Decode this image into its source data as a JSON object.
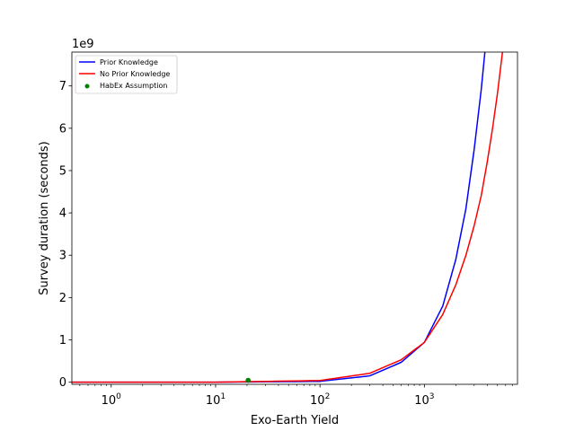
{
  "chart_data": {
    "type": "line",
    "xlabel": "Exo-Earth Yield",
    "ylabel": "Survey duration (seconds)",
    "y_offset_text": "1e9",
    "x_scale": "log",
    "xlim": [
      0.42,
      7800
    ],
    "ylim": [
      -0.05,
      7.8
    ],
    "y_unit_multiplier": 1000000000,
    "x_ticks": [
      {
        "value": 1,
        "base": "10",
        "exp": "0"
      },
      {
        "value": 10,
        "base": "10",
        "exp": "1"
      },
      {
        "value": 100,
        "base": "10",
        "exp": "2"
      },
      {
        "value": 1000,
        "base": "10",
        "exp": "3"
      }
    ],
    "y_ticks": [
      {
        "value": 0,
        "label": "0"
      },
      {
        "value": 1,
        "label": "1"
      },
      {
        "value": 2,
        "label": "2"
      },
      {
        "value": 3,
        "label": "3"
      },
      {
        "value": 4,
        "label": "4"
      },
      {
        "value": 5,
        "label": "5"
      },
      {
        "value": 6,
        "label": "6"
      },
      {
        "value": 7,
        "label": "7"
      }
    ],
    "grid": false,
    "legend_position": "top-left",
    "series": [
      {
        "name": "Prior Knowledge",
        "color": "#0000ff",
        "kind": "line",
        "x": [
          0.42,
          1,
          10,
          100,
          300,
          600,
          1000,
          1500,
          2000,
          2500,
          3000,
          3500,
          3800
        ],
        "y": [
          0.0,
          0.0,
          0.0,
          0.02,
          0.15,
          0.47,
          0.94,
          1.8,
          2.9,
          4.1,
          5.5,
          6.9,
          7.8
        ]
      },
      {
        "name": "No Prior Knowledge",
        "color": "#ff0000",
        "kind": "line",
        "x": [
          0.42,
          1,
          10,
          100,
          300,
          600,
          1000,
          1500,
          2000,
          2500,
          3000,
          3500,
          4000,
          4500,
          5000,
          5600
        ],
        "y": [
          0.0,
          0.0,
          0.0,
          0.04,
          0.21,
          0.53,
          0.94,
          1.6,
          2.3,
          3.0,
          3.7,
          4.4,
          5.2,
          6.0,
          6.8,
          7.8
        ]
      },
      {
        "name": "HabEx Assumption",
        "color": "#008000",
        "kind": "scatter",
        "x": [
          20.5
        ],
        "y": [
          0.045
        ]
      }
    ]
  }
}
